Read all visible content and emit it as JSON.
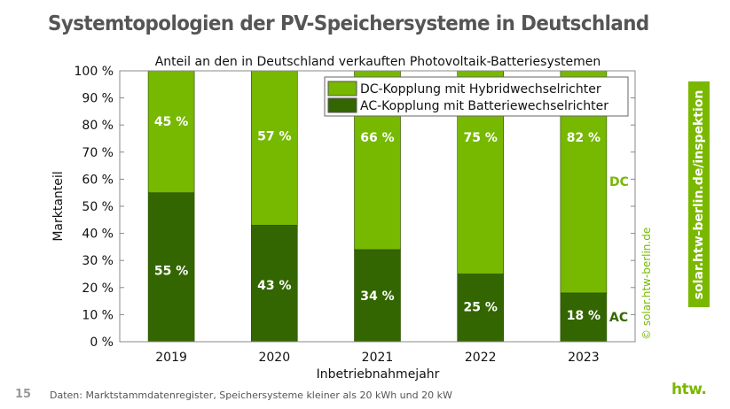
{
  "slide": {
    "title": "Systemtopologien der PV-Speichersysteme in Deutschland",
    "side_banner": "solar.htw-berlin.de/inspektion",
    "page_number": "15",
    "source_note": "Daten: Marktstammdatenregister, Speichersysteme kleiner als 20 kWh und 20 kW",
    "logo": "htw.",
    "copyright": "© solar.htw-berlin.de"
  },
  "chart_data": {
    "type": "bar",
    "stacked": true,
    "title": "Anteil an den in Deutschland verkauften Photovoltaik-Batteriesystemen",
    "xlabel": "Inbetriebnahmejahr",
    "ylabel": "Marktanteil",
    "ylim": [
      0,
      100
    ],
    "yticks": [
      "0 %",
      "10 %",
      "20 %",
      "30 %",
      "40 %",
      "50 %",
      "60 %",
      "70 %",
      "80 %",
      "90 %",
      "100 %"
    ],
    "categories": [
      "2019",
      "2020",
      "2021",
      "2022",
      "2023"
    ],
    "legend_position": "top-right",
    "series": [
      {
        "name": "AC-Kopplung mit Batteriewechselrichter",
        "short": "AC",
        "values": [
          55,
          43,
          34,
          25,
          18
        ],
        "labels": [
          "55 %",
          "43 %",
          "34 %",
          "25 %",
          "18 %"
        ],
        "color": "#336600"
      },
      {
        "name": "DC-Kopplung mit Hybridwechselrichter",
        "short": "DC",
        "values": [
          45,
          57,
          66,
          75,
          82
        ],
        "labels": [
          "45 %",
          "57 %",
          "66 %",
          "75 %",
          "82 %"
        ],
        "color": "#77b800"
      }
    ]
  }
}
